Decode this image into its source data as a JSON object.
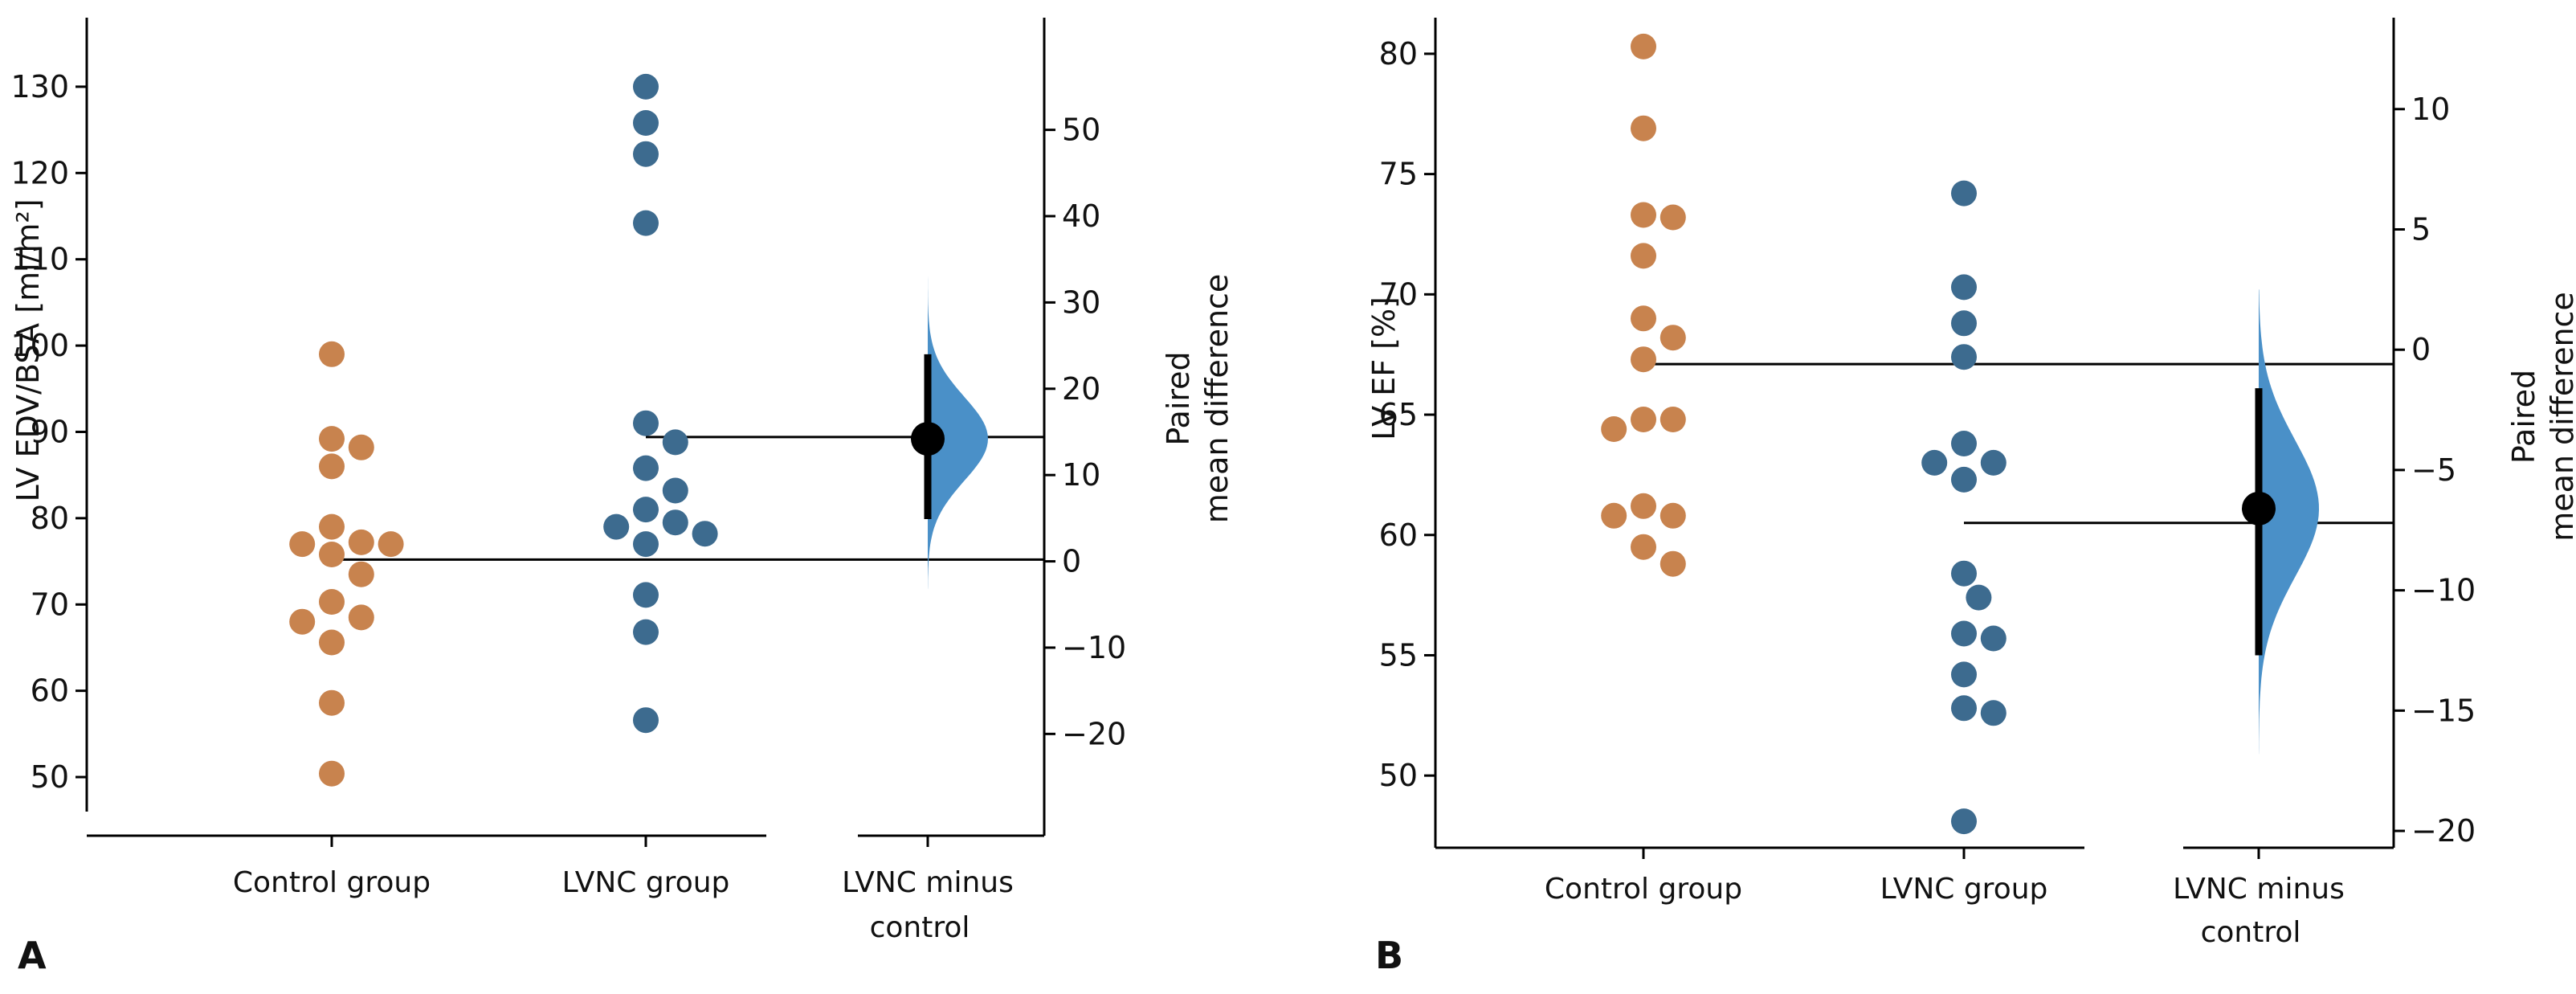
{
  "chart_data": [
    {
      "type": "scatter",
      "panel_label": "A",
      "ylabel": "LV EDV/BSA [ml/m²]",
      "ylim": [
        46,
        138
      ],
      "yticks": [
        50,
        60,
        70,
        80,
        90,
        100,
        110,
        120,
        130
      ],
      "diff_label": [
        "Paired",
        "mean difference"
      ],
      "diff_ylim": [
        -29,
        63
      ],
      "diff_ticks": [
        -20,
        -10,
        0,
        10,
        20,
        30,
        40,
        50
      ],
      "categories": [
        "Control group",
        "LVNC group"
      ],
      "contrast_label": [
        "LVNC minus",
        "control"
      ],
      "colors": {
        "control": "#c8834e",
        "lvnc": "#3d6b8f",
        "violin": "#4a90c8"
      },
      "series": [
        {
          "name": "Control group",
          "values": [
            99,
            89.2,
            88.2,
            86,
            79,
            77.2,
            77,
            77,
            75.8,
            73.5,
            70.3,
            68.5,
            68,
            65.6,
            58.6,
            50.4
          ]
        },
        {
          "name": "LVNC group",
          "values": [
            130,
            125.8,
            122.2,
            114.2,
            91,
            88.8,
            85.8,
            83.2,
            81,
            79.5,
            79,
            78.2,
            77,
            71.1,
            66.8,
            56.6
          ]
        }
      ],
      "mean_difference": 14.2,
      "ci": [
        4.9,
        24.0
      ],
      "control_mean": 75.2,
      "lvnc_mean": 89.4,
      "bootstrap_range": [
        -3.2,
        34.5
      ]
    },
    {
      "type": "scatter",
      "panel_label": "B",
      "ylabel": "LV EF [%]",
      "ylim": [
        47,
        81.5
      ],
      "yticks": [
        50,
        55,
        60,
        65,
        70,
        75,
        80
      ],
      "diff_label": [
        "Paired",
        "mean difference"
      ],
      "diff_ylim": [
        -20.7,
        13.8
      ],
      "diff_ticks": [
        -20,
        -15,
        -10,
        -5,
        0,
        5,
        10
      ],
      "categories": [
        "Control group",
        "LVNC group"
      ],
      "contrast_label": [
        "LVNC minus",
        "control"
      ],
      "colors": {
        "control": "#c8834e",
        "lvnc": "#3d6b8f",
        "violin": "#4a90c8"
      },
      "series": [
        {
          "name": "Control group",
          "values": [
            80.3,
            76.9,
            73.3,
            73.2,
            71.6,
            69,
            68.2,
            67.3,
            64.8,
            64.8,
            64.4,
            61.2,
            60.8,
            60.8,
            59.5,
            58.8
          ]
        },
        {
          "name": "LVNC group",
          "values": [
            74.2,
            70.3,
            68.8,
            67.4,
            63.8,
            63,
            63,
            62.3,
            58.4,
            57.4,
            55.9,
            55.7,
            54.2,
            52.8,
            52.6,
            48.1
          ]
        }
      ],
      "mean_difference": -6.6,
      "ci": [
        -12.7,
        -1.6
      ],
      "control_mean": 67.1,
      "lvnc_mean": 60.5,
      "bootstrap_range": [
        -16.8,
        2.5
      ]
    }
  ]
}
